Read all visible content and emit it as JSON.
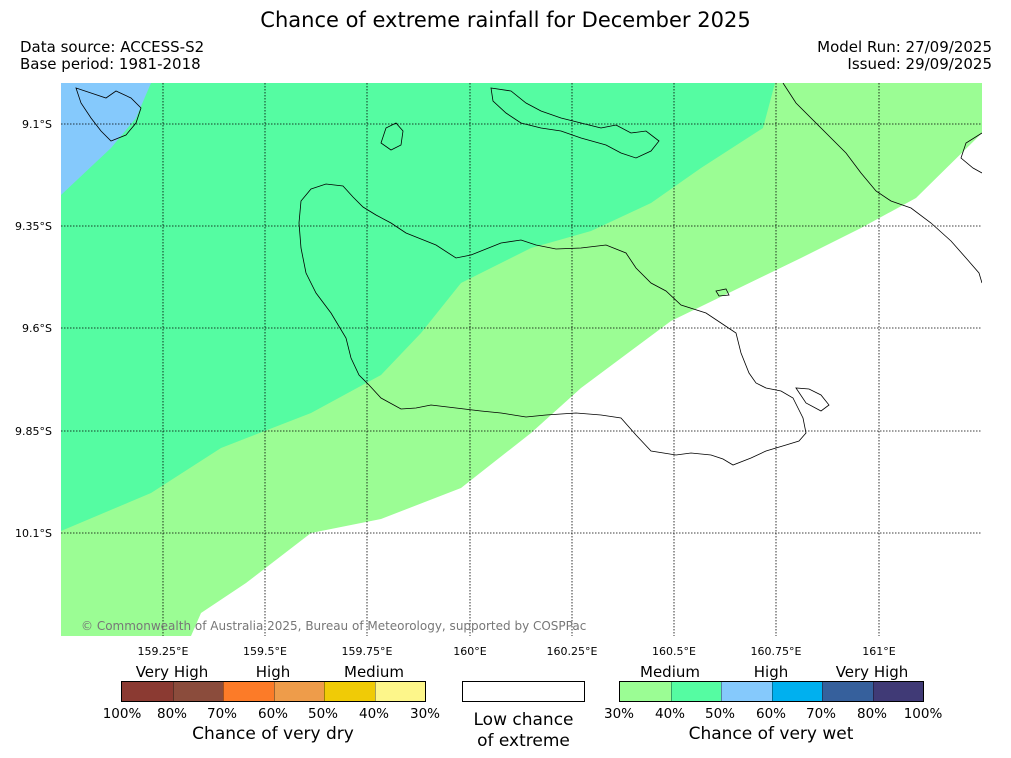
{
  "title": "Chance of extreme rainfall for December 2025",
  "meta": {
    "source": "Data source: ACCESS-S2",
    "base_period": "Base period: 1981-2018",
    "model_run": "Model Run: 27/09/2025",
    "issued": "Issued: 29/09/2025"
  },
  "map": {
    "lat_labels": [
      "9.1°S",
      "9.35°S",
      "9.6°S",
      "9.85°S",
      "10.1°S"
    ],
    "lon_labels": [
      "159.25°E",
      "159.5°E",
      "159.75°E",
      "160°E",
      "160.25°E",
      "160.5°E",
      "160.75°E",
      "161°E"
    ],
    "copyright": "© Commonwealth of Australia 2025, Bureau of Meteorology, supported by COSPPac",
    "colors": {
      "wet_30_40": "#9bfd94",
      "wet_40_50": "#55fca2",
      "wet_50_60": "#85c9fc"
    }
  },
  "legend": {
    "dry": {
      "categories": [
        "Very High",
        "High",
        "Medium"
      ],
      "ticks": [
        "100%",
        "80%",
        "70%",
        "60%",
        "50%",
        "40%",
        "30%"
      ],
      "colors": [
        "#8b3a32",
        "#8b4c3c",
        "#fc7b28",
        "#ee9c4a",
        "#f0cb06",
        "#fdf68a"
      ],
      "label": "Chance of very dry"
    },
    "low": {
      "line1": "Low chance",
      "line2": "of extreme"
    },
    "wet": {
      "categories": [
        "Medium",
        "High",
        "Very High"
      ],
      "ticks": [
        "30%",
        "40%",
        "50%",
        "60%",
        "70%",
        "80%",
        "100%"
      ],
      "colors": [
        "#9bfd94",
        "#55fca2",
        "#85c9fc",
        "#00b0ef",
        "#36609c",
        "#403a76"
      ],
      "label": "Chance of very wet"
    }
  }
}
